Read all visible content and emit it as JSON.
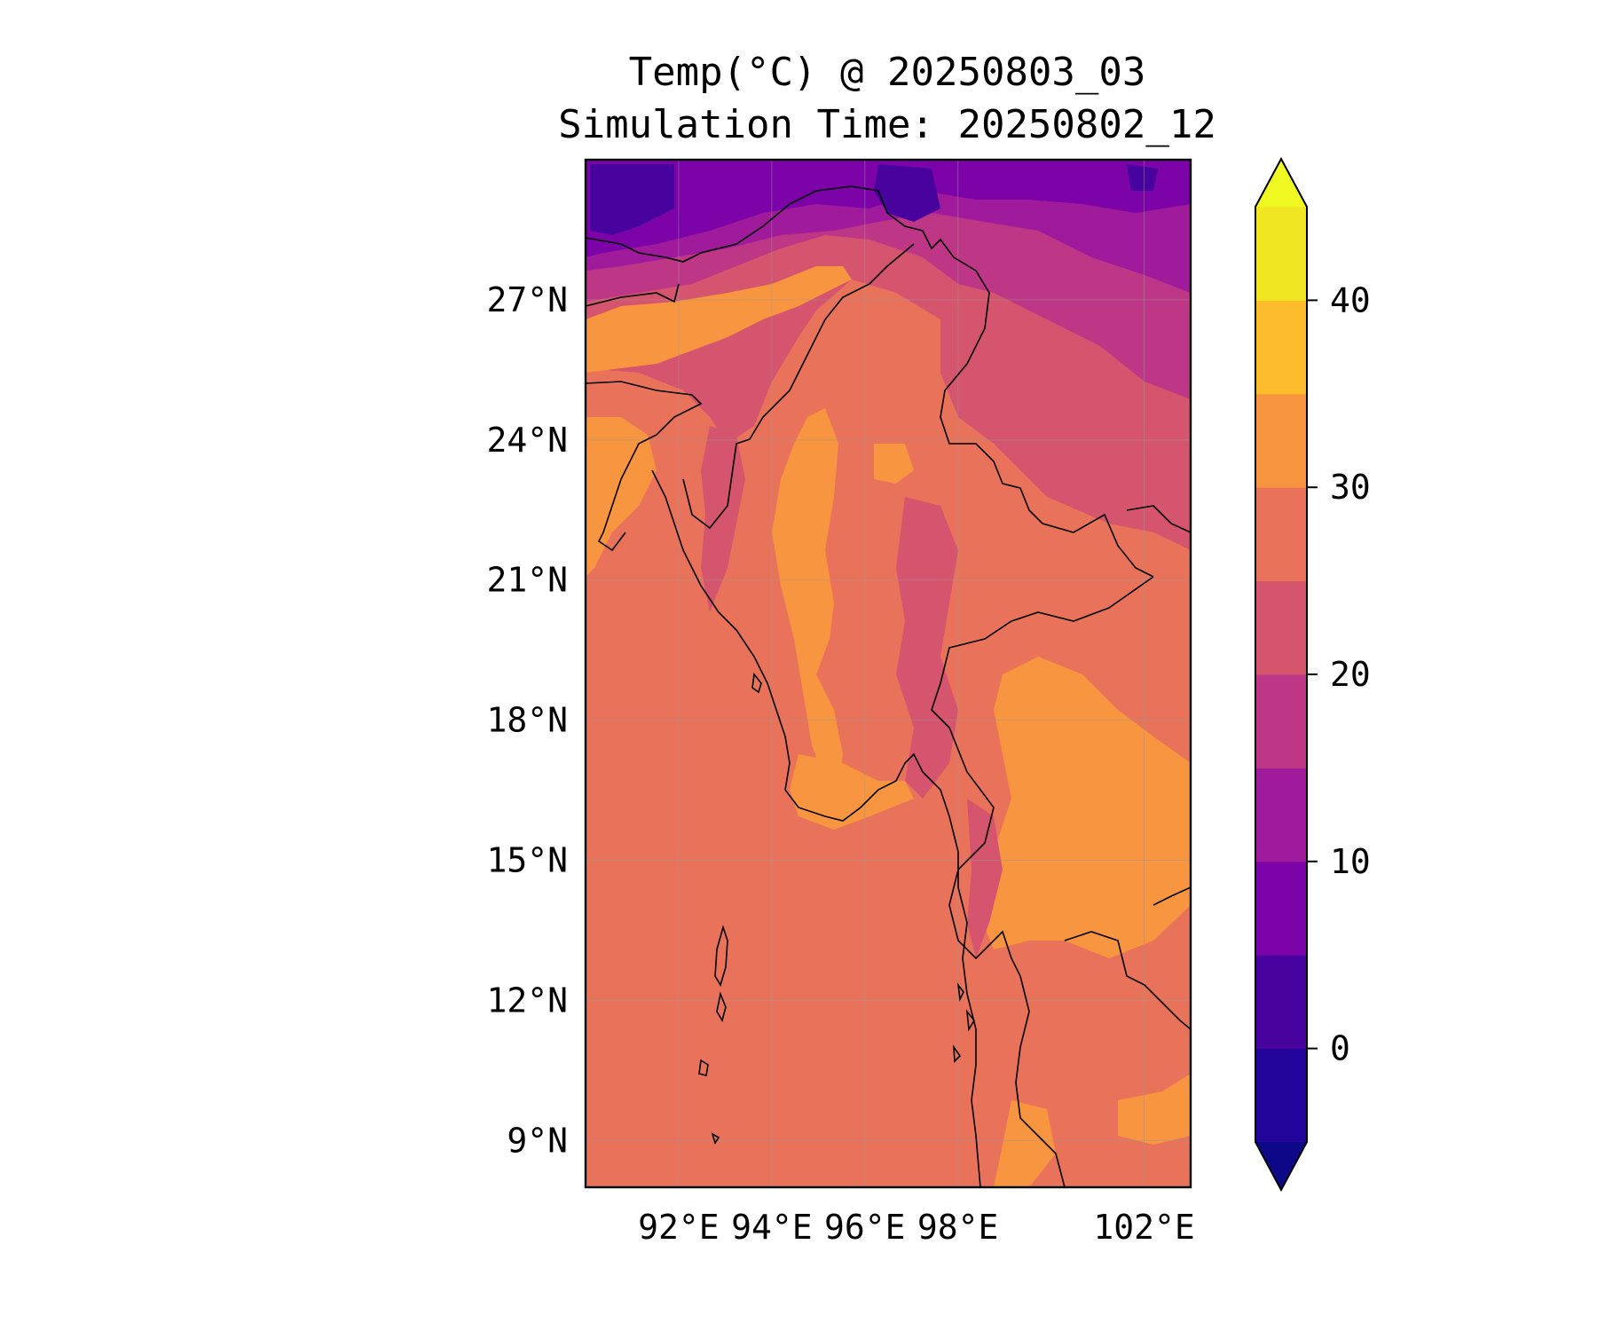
{
  "title": {
    "line1": "Temp(°C) @ 20250803_03",
    "line2": "Simulation Time: 20250802_12"
  },
  "map": {
    "lon_range": [
      90.0,
      103.0
    ],
    "lat_range": [
      8.0,
      30.0
    ],
    "lat_ticks": [
      {
        "value": 27,
        "label": "27°N"
      },
      {
        "value": 24,
        "label": "24°N"
      },
      {
        "value": 21,
        "label": "21°N"
      },
      {
        "value": 18,
        "label": "18°N"
      },
      {
        "value": 15,
        "label": "15°N"
      },
      {
        "value": 12,
        "label": "12°N"
      },
      {
        "value": 9,
        "label": "9°N"
      }
    ],
    "lon_ticks": [
      {
        "value": 92,
        "label": "92°E"
      },
      {
        "value": 94,
        "label": "94°E"
      },
      {
        "value": 96,
        "label": "96°E"
      },
      {
        "value": 98,
        "label": "98°E"
      },
      {
        "value": 102,
        "label": "102°E"
      }
    ],
    "grid": true,
    "ocean_color": "#e9735a",
    "variable": "Temperature at 2 m"
  },
  "colorbar": {
    "levels": [
      -5,
      0,
      5,
      10,
      15,
      20,
      25,
      30,
      35,
      40,
      45
    ],
    "colors": [
      "#23049a",
      "#48039f",
      "#7b03a8",
      "#a01a9c",
      "#bd3786",
      "#d5546e",
      "#e9735a",
      "#f89540",
      "#fdbc2b",
      "#f0e621"
    ],
    "under_color": "#0d0887",
    "over_color": "#f0f921",
    "extend": "both",
    "ticks": [
      {
        "value": 0,
        "label": "0"
      },
      {
        "value": 10,
        "label": "10"
      },
      {
        "value": 20,
        "label": "20"
      },
      {
        "value": 30,
        "label": "30"
      },
      {
        "value": 40,
        "label": "40"
      }
    ]
  }
}
